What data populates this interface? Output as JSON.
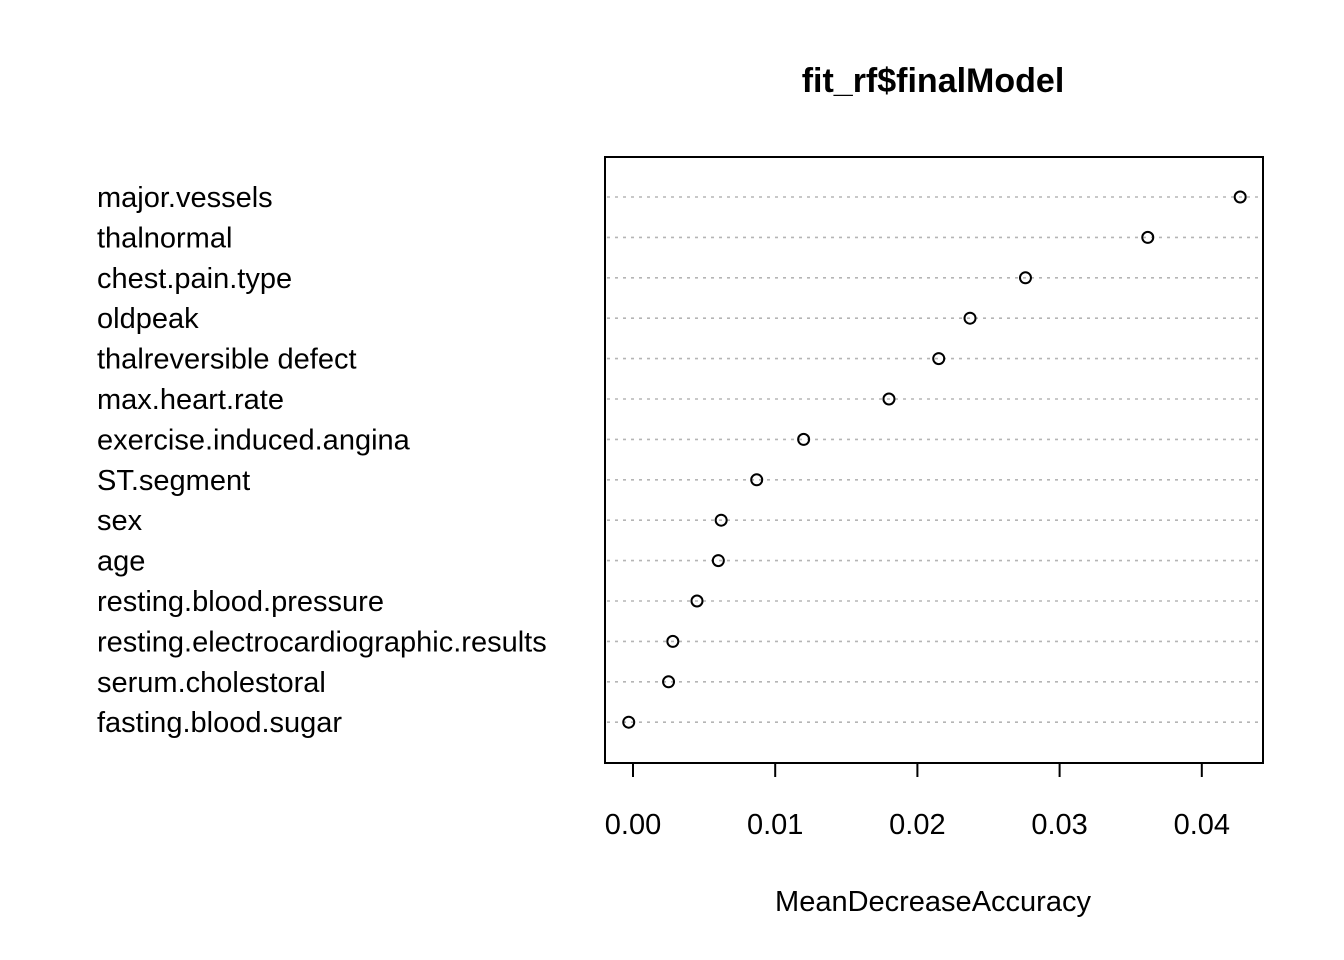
{
  "chart_data": {
    "type": "scatter",
    "subtype": "dotchart",
    "title": "fit_rf$finalModel",
    "xlabel": "MeanDecreaseAccuracy",
    "ylabel": "",
    "xlim": [
      -0.002,
      0.0445
    ],
    "xticks": [
      0.0,
      0.01,
      0.02,
      0.03,
      0.04
    ],
    "xtick_labels": [
      "0.00",
      "0.01",
      "0.02",
      "0.03",
      "0.04"
    ],
    "grid": "dotted horizontal guide lines",
    "categories": [
      "major.vessels",
      "thalnormal",
      "chest.pain.type",
      "oldpeak",
      "thalreversible defect",
      "max.heart.rate",
      "exercise.induced.angina",
      "ST.segment",
      "sex",
      "age",
      "resting.blood.pressure",
      "resting.electrocardiographic.results",
      "serum.cholestoral",
      "fasting.blood.sugar"
    ],
    "values": [
      0.0427,
      0.0362,
      0.0276,
      0.0237,
      0.0215,
      0.018,
      0.012,
      0.0087,
      0.0062,
      0.006,
      0.0045,
      0.0028,
      0.0025,
      -0.0003
    ]
  }
}
